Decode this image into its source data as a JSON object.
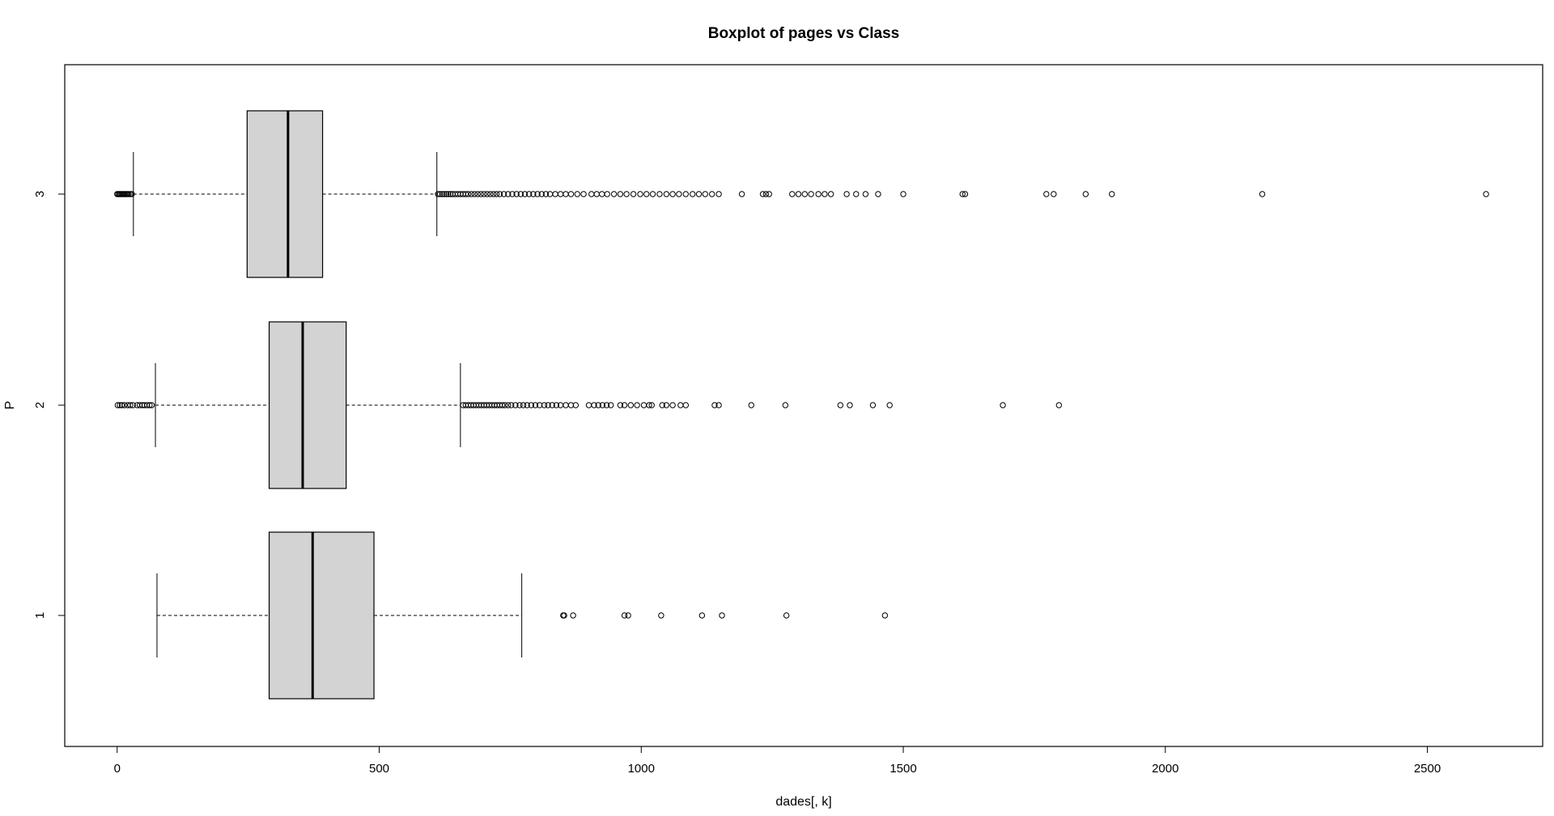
{
  "chart_data": {
    "type": "boxplot",
    "orientation": "horizontal",
    "title": "Boxplot of pages vs Class",
    "xlabel": "dades[, k]",
    "ylabel": "P",
    "xlim": [
      -100,
      2720
    ],
    "xticks": [
      0,
      500,
      1000,
      1500,
      2000,
      2500
    ],
    "xtick_labels": [
      "0",
      "500",
      "1000",
      "1500",
      "2000",
      "2500"
    ],
    "categories": [
      "1",
      "2",
      "3"
    ],
    "box_fill": "#d3d3d3",
    "grid": false,
    "boxes": [
      {
        "category": "1",
        "whisker_low": 76,
        "q1": 290,
        "median": 373,
        "q3": 490,
        "whisker_high": 772,
        "outliers": [
          851,
          853,
          870,
          968,
          975,
          1038,
          1116,
          1154,
          1277,
          1465
        ]
      },
      {
        "category": "2",
        "whisker_low": 73,
        "q1": 290,
        "median": 354,
        "q3": 437,
        "whisker_high": 655,
        "outliers": [
          1,
          5,
          9,
          14,
          20,
          25,
          30,
          38,
          43,
          48,
          52,
          57,
          62,
          66,
          660,
          665,
          670,
          675,
          680,
          685,
          690,
          695,
          700,
          705,
          710,
          715,
          720,
          725,
          730,
          735,
          740,
          746,
          752,
          760,
          768,
          775,
          782,
          790,
          798,
          806,
          815,
          822,
          830,
          838,
          846,
          856,
          866,
          875,
          900,
          910,
          918,
          926,
          934,
          942,
          960,
          968,
          980,
          992,
          1005,
          1015,
          1020,
          1040,
          1048,
          1060,
          1075,
          1085,
          1140,
          1148,
          1210,
          1275,
          1380,
          1398,
          1442,
          1474,
          1690,
          1797
        ]
      },
      {
        "category": "3",
        "whisker_low": 31,
        "q1": 248,
        "median": 326,
        "q3": 392,
        "whisker_high": 610,
        "outliers": [
          0,
          2,
          4,
          6,
          8,
          10,
          12,
          14,
          16,
          18,
          20,
          22,
          25,
          28,
          612,
          616,
          620,
          624,
          628,
          632,
          636,
          640,
          645,
          650,
          655,
          660,
          665,
          670,
          676,
          682,
          688,
          694,
          700,
          706,
          712,
          718,
          724,
          730,
          738,
          746,
          754,
          762,
          770,
          778,
          786,
          794,
          802,
          810,
          818,
          826,
          836,
          846,
          856,
          866,
          878,
          890,
          905,
          915,
          925,
          935,
          948,
          960,
          972,
          985,
          998,
          1010,
          1022,
          1035,
          1048,
          1060,
          1072,
          1085,
          1098,
          1110,
          1122,
          1135,
          1148,
          1192,
          1232,
          1238,
          1244,
          1288,
          1300,
          1312,
          1324,
          1338,
          1350,
          1362,
          1392,
          1410,
          1428,
          1452,
          1500,
          1613,
          1618,
          1773,
          1787,
          1848,
          1898,
          2185,
          2612
        ]
      }
    ]
  }
}
